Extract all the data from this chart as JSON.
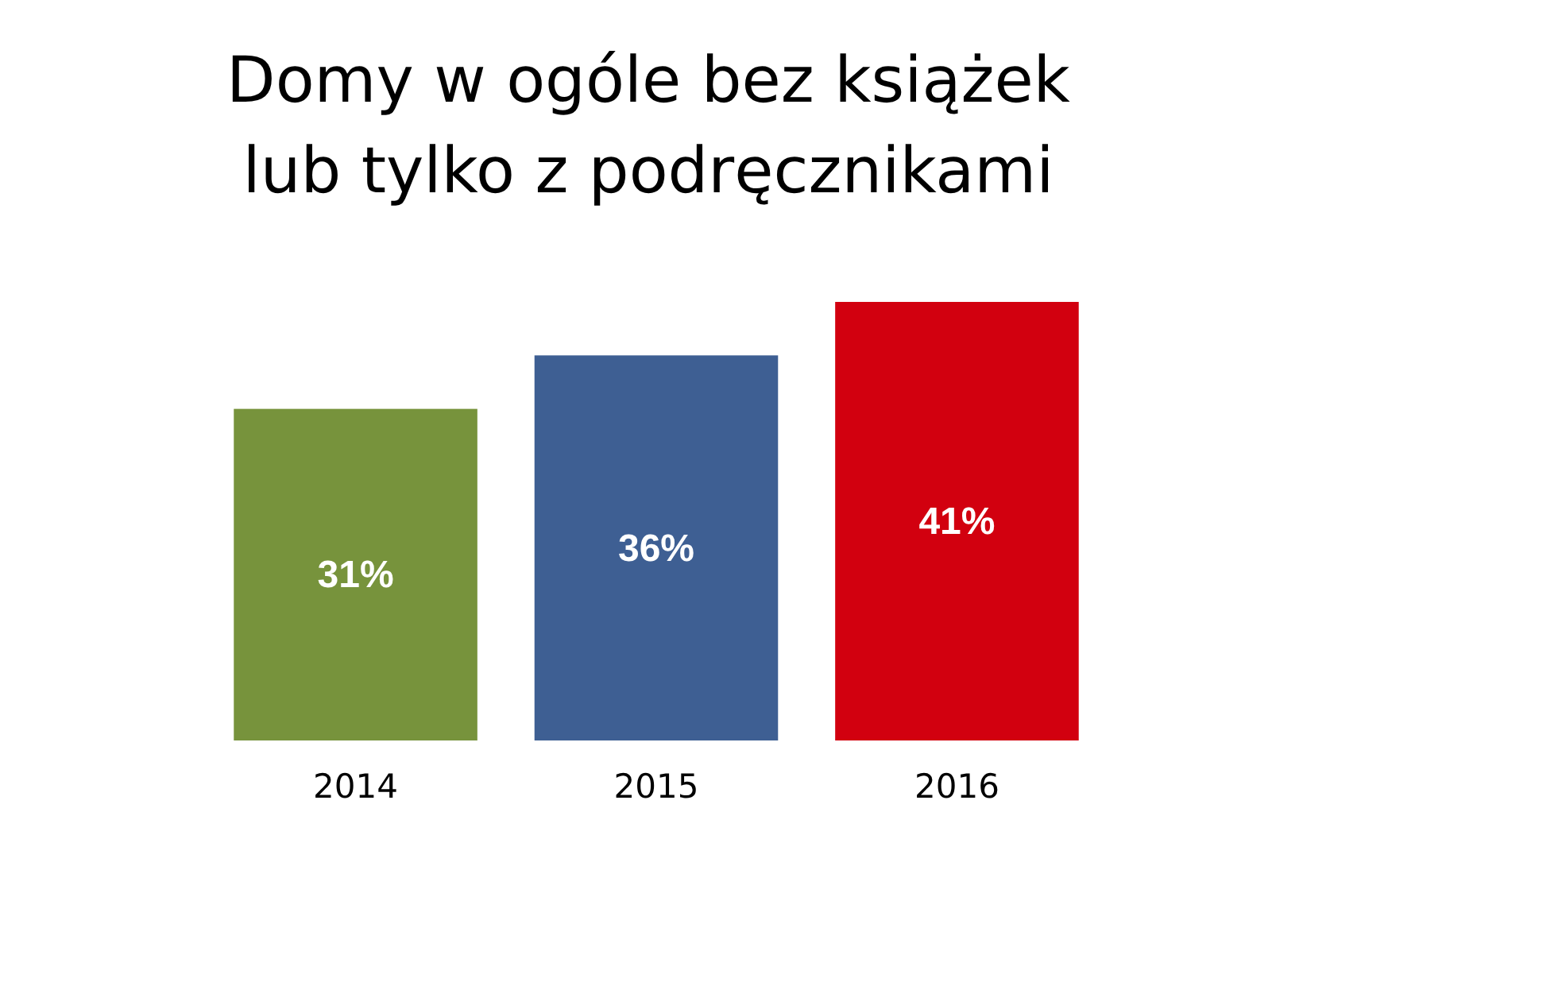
{
  "chart_data": {
    "type": "bar",
    "title": "Domy w ogóle bez książek\nlub tylko z podręcznikami",
    "categories": [
      "2014",
      "2015",
      "2016"
    ],
    "values": [
      31,
      36,
      41
    ],
    "colors": [
      "#77933c",
      "#3e5f93",
      "#d2000f"
    ],
    "data_labels": true,
    "value_labels": [
      "31%",
      "36%",
      "41%"
    ]
  }
}
